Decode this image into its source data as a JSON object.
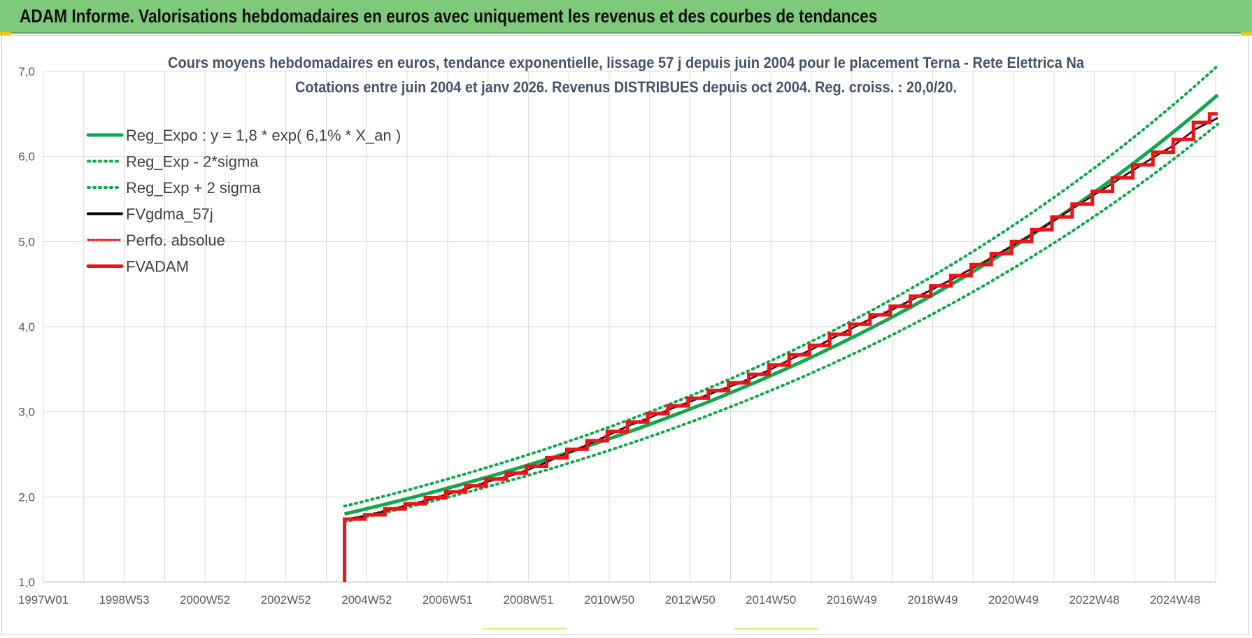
{
  "banner": {
    "title": "ADAM Informe. Valorisations hebdomadaires en euros avec uniquement les revenus et des courbes de tendances"
  },
  "colors": {
    "banner_bg": "#7fca7a",
    "regression_green": "#11a84b",
    "adam_red": "#e8151a",
    "fvgdma_black": "#000000",
    "grid": "#d9d9d9",
    "corner_marks": "#f0c419"
  },
  "chart_data": {
    "type": "line",
    "title": "Cours moyens hebdomadaires en euros, tendance exponentielle, lissage 57 j depuis juin 2004 pour le placement Terna - Rete Elettrica Na",
    "subtitle": "Cotations entre juin 2004 et janv 2026. Revenus DISTRIBUES depuis oct 2004. Reg. croiss. : 20,0/20.",
    "x_tick_labels": [
      "1997W01",
      "1998W53",
      "2000W52",
      "2002W52",
      "2004W52",
      "2006W51",
      "2008W51",
      "2010W50",
      "2012W50",
      "2014W50",
      "2016W49",
      "2018W49",
      "2020W49",
      "2022W48",
      "2024W48"
    ],
    "xlim": [
      1997.0,
      2026.0
    ],
    "ylim": [
      1.0,
      7.0
    ],
    "y_ticks": [
      "1,0",
      "2,0",
      "3,0",
      "4,0",
      "5,0",
      "6,0",
      "7,0"
    ],
    "grid": true,
    "legend_position": "top-left",
    "regression": {
      "a": 1.8,
      "rate": 0.061,
      "start_year": 2004.45,
      "end_year": 2026.05,
      "sigma_factor": 0.051
    },
    "series": [
      {
        "name": "Reg_Expo : y = 1,8 * exp( 6,1% *  X_an )",
        "color": "#11a84b",
        "style": "solid-thick",
        "x": [
          2004.45,
          2026.05
        ],
        "formula": "1.8*exp(0.061*(year-2004.45))"
      },
      {
        "name": "Reg_Exp - 2*sigma",
        "color": "#11a84b",
        "style": "dotted",
        "formula": "regression*(1-0.051)"
      },
      {
        "name": "Reg_Exp + 2 sigma",
        "color": "#11a84b",
        "style": "dotted",
        "formula": "regression*(1+0.051)"
      },
      {
        "name": "FVgdma_57j",
        "color": "#000000",
        "style": "solid",
        "x": [
          2004.45,
          2004.9,
          2005.5,
          2006.0,
          2006.5,
          2007.0,
          2007.5,
          2008.0,
          2008.5,
          2009.0,
          2009.5,
          2010.0,
          2010.5,
          2011.0,
          2011.5,
          2012.0,
          2012.5,
          2013.0,
          2013.5,
          2014.0,
          2014.5,
          2015.0,
          2015.5,
          2016.0,
          2016.5,
          2017.0,
          2017.5,
          2018.0,
          2018.5,
          2019.0,
          2019.5,
          2020.0,
          2020.5,
          2021.0,
          2021.5,
          2022.0,
          2022.5,
          2023.0,
          2023.5,
          2024.0,
          2024.5,
          2025.0,
          2025.5,
          2026.05
        ],
        "y": [
          1.74,
          1.77,
          1.84,
          1.9,
          1.96,
          2.03,
          2.1,
          2.18,
          2.24,
          2.32,
          2.42,
          2.52,
          2.62,
          2.73,
          2.84,
          2.93,
          3.03,
          3.12,
          3.21,
          3.3,
          3.39,
          3.5,
          3.62,
          3.73,
          3.86,
          3.98,
          4.1,
          4.2,
          4.32,
          4.44,
          4.56,
          4.69,
          4.82,
          4.96,
          5.1,
          5.25,
          5.4,
          5.55,
          5.7,
          5.85,
          6.0,
          6.14,
          6.32,
          6.45
        ]
      },
      {
        "name": "Perfo. absolue",
        "color": "#e8151a",
        "style": "dotted",
        "x": [
          2004.45,
          2004.9,
          2005.5,
          2006.0,
          2006.5,
          2007.0,
          2007.5,
          2008.0,
          2008.5,
          2009.0,
          2009.5,
          2010.0,
          2010.5,
          2011.0,
          2011.5,
          2012.0,
          2012.5,
          2013.0,
          2013.5,
          2014.0,
          2014.5,
          2015.0,
          2015.5,
          2016.0,
          2016.5,
          2017.0,
          2017.5,
          2018.0,
          2018.5,
          2019.0,
          2019.5,
          2020.0,
          2020.5,
          2021.0,
          2021.5,
          2022.0,
          2022.5,
          2023.0,
          2023.5,
          2024.0,
          2024.5,
          2025.0,
          2025.5,
          2026.05
        ],
        "y": [
          1.74,
          1.78,
          1.85,
          1.91,
          1.97,
          2.04,
          2.11,
          2.19,
          2.25,
          2.33,
          2.43,
          2.53,
          2.63,
          2.74,
          2.85,
          2.94,
          3.04,
          3.13,
          3.22,
          3.31,
          3.4,
          3.51,
          3.63,
          3.74,
          3.87,
          3.99,
          4.11,
          4.21,
          4.33,
          4.45,
          4.57,
          4.7,
          4.83,
          4.97,
          5.11,
          5.26,
          5.41,
          5.56,
          5.71,
          5.86,
          6.01,
          6.15,
          6.33,
          6.46
        ]
      },
      {
        "name": "FVADAM",
        "color": "#e8151a",
        "style": "step-thick",
        "start": [
          2004.45,
          1.0
        ],
        "x": [
          2004.45,
          2004.95,
          2005.45,
          2005.95,
          2006.45,
          2006.95,
          2007.45,
          2007.95,
          2008.45,
          2008.95,
          2009.45,
          2009.95,
          2010.45,
          2010.95,
          2011.45,
          2011.95,
          2012.45,
          2012.95,
          2013.45,
          2013.95,
          2014.45,
          2014.95,
          2015.45,
          2015.95,
          2016.45,
          2016.95,
          2017.45,
          2017.95,
          2018.45,
          2018.95,
          2019.45,
          2019.95,
          2020.45,
          2020.95,
          2021.45,
          2021.95,
          2022.45,
          2022.95,
          2023.45,
          2023.95,
          2024.45,
          2024.95,
          2025.45,
          2025.85,
          2026.05
        ],
        "y": [
          1.74,
          1.79,
          1.86,
          1.92,
          1.99,
          2.06,
          2.13,
          2.21,
          2.28,
          2.36,
          2.46,
          2.56,
          2.66,
          2.77,
          2.88,
          2.98,
          3.07,
          3.16,
          3.25,
          3.34,
          3.44,
          3.55,
          3.67,
          3.78,
          3.91,
          4.03,
          4.14,
          4.24,
          4.36,
          4.48,
          4.6,
          4.73,
          4.86,
          5.0,
          5.14,
          5.29,
          5.44,
          5.59,
          5.75,
          5.9,
          6.05,
          6.2,
          6.4,
          6.5,
          6.5
        ]
      }
    ]
  }
}
